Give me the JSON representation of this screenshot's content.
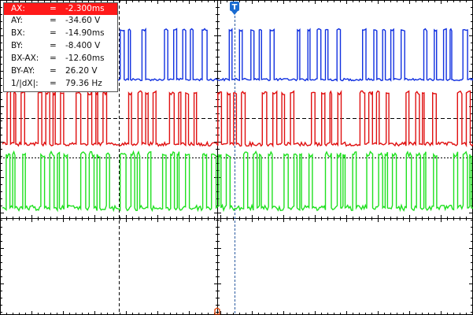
{
  "measurements": [
    {
      "label": "AX:",
      "eq": "=",
      "value": "-2.300ms",
      "highlighted": true
    },
    {
      "label": "AY:",
      "eq": "=",
      "value": "-34.60 V",
      "highlighted": false
    },
    {
      "label": "BX:",
      "eq": "=",
      "value": "-14.90ms",
      "highlighted": false
    },
    {
      "label": "BY:",
      "eq": "=",
      "value": "-8.400 V",
      "highlighted": false
    },
    {
      "label": "BX-AX:",
      "eq": "=",
      "value": "-12.60ms",
      "highlighted": false
    },
    {
      "label": "BY-AY:",
      "eq": "=",
      "value": "26.20 V",
      "highlighted": false
    },
    {
      "label": "1/|dX|:",
      "eq": "=",
      "value": "79.36 Hz",
      "highlighted": false
    }
  ],
  "trigger_marker": {
    "label": "T",
    "color": "#1a6bd0"
  },
  "channels": [
    {
      "name": "blue-trace",
      "color": "#1030e0"
    },
    {
      "name": "red-trace",
      "color": "#e01010"
    },
    {
      "name": "green-trace",
      "color": "#20e020"
    }
  ],
  "colors": {
    "background": "#ffffff",
    "grid": "#000000",
    "highlight": "#ff1a1a",
    "time_origin_marker": "#e04000"
  }
}
